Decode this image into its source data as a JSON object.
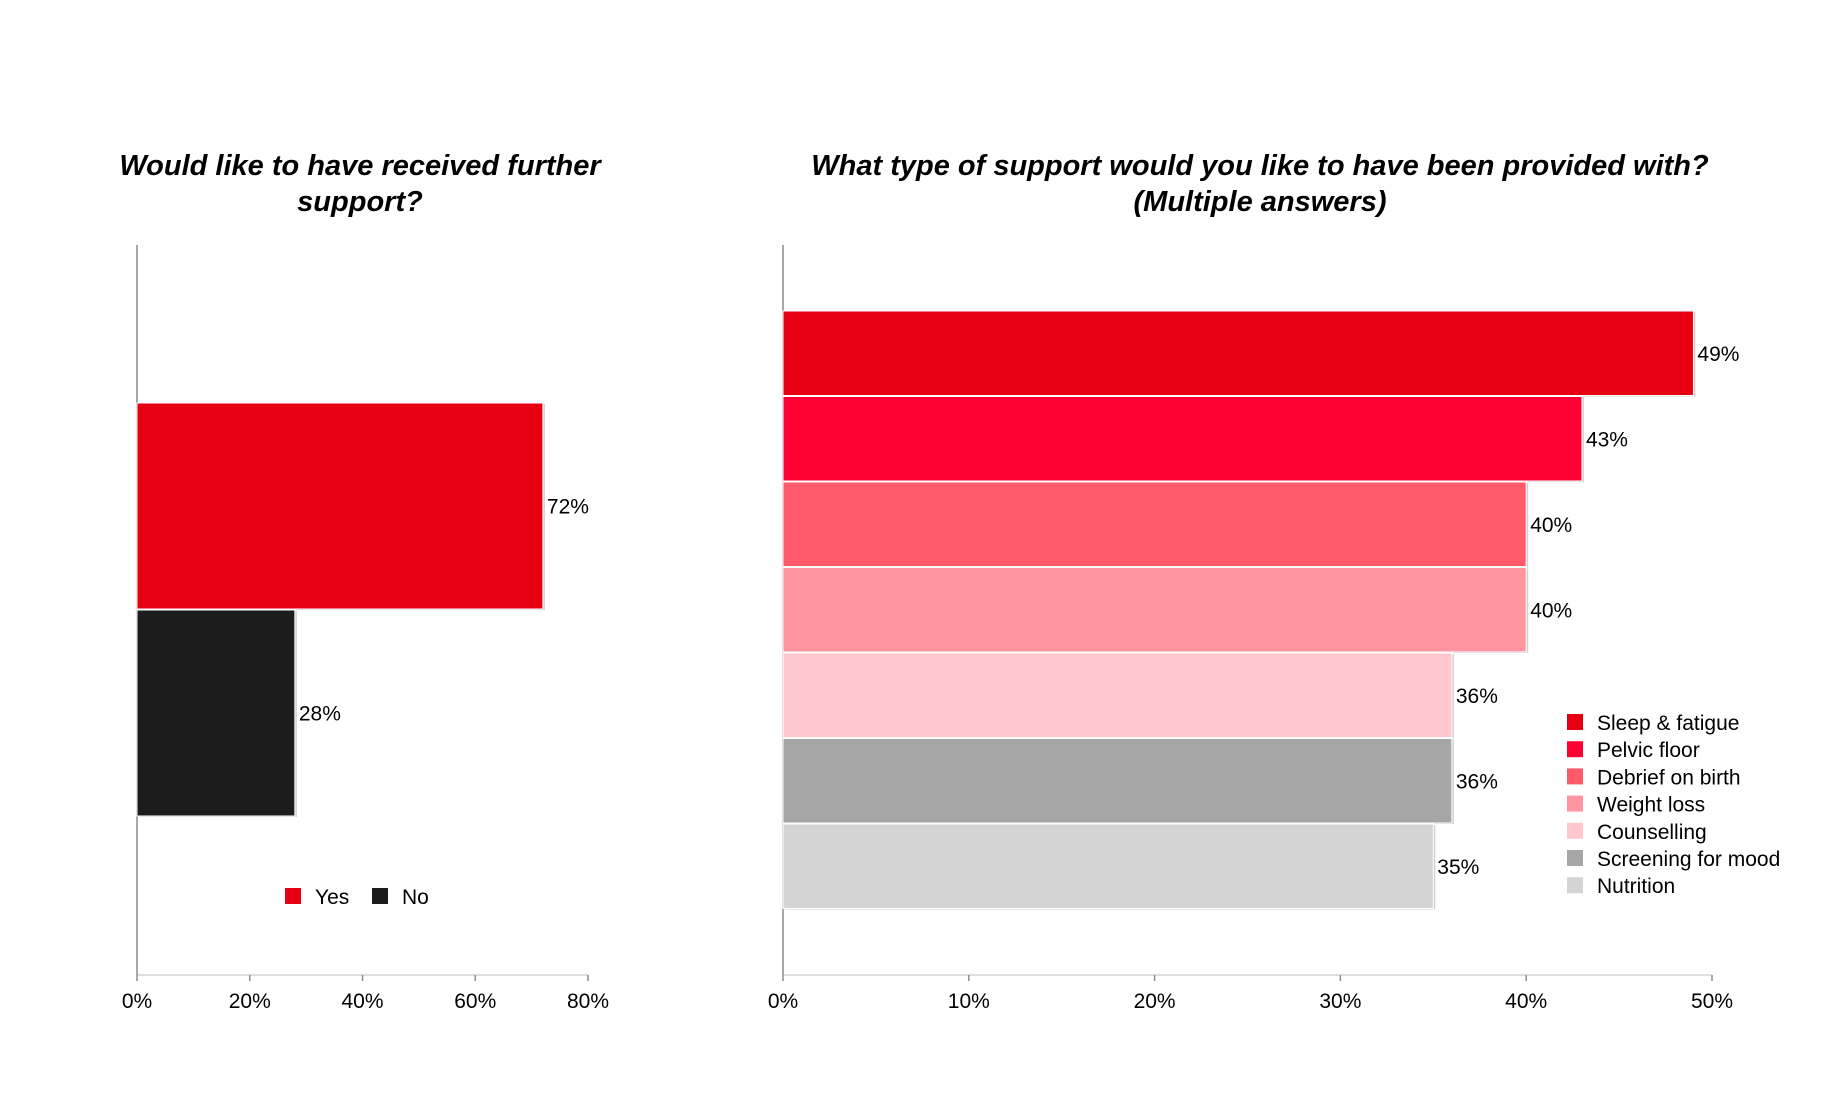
{
  "chart_data": [
    {
      "type": "bar",
      "orientation": "horizontal",
      "title": "Would like to have received further support?",
      "categories": [
        "Yes",
        "No"
      ],
      "values": [
        72,
        28
      ],
      "value_labels": [
        "72%",
        "28%"
      ],
      "colors": [
        "#e60012",
        "#1c1c1c"
      ],
      "xlim": [
        0,
        80
      ],
      "xticks": [
        0,
        20,
        40,
        60,
        80
      ],
      "xtick_labels": [
        "0%",
        "20%",
        "40%",
        "60%",
        "80%"
      ],
      "legend": {
        "position": "bottom",
        "items": [
          "Yes",
          "No"
        ]
      }
    },
    {
      "type": "bar",
      "orientation": "horizontal",
      "title": "What type of support would you like to have been provided with? (Multiple answers)",
      "title_lines": [
        "What type of support would you like to have been provided with?",
        "(Multiple answers)"
      ],
      "categories": [
        "Sleep & fatigue",
        "Pelvic floor",
        "Debrief on birth",
        "Weight loss",
        "Counselling",
        "Screening for mood",
        "Nutrition"
      ],
      "values": [
        49,
        43,
        40,
        40,
        36,
        36,
        35
      ],
      "value_labels": [
        "49%",
        "43%",
        "40%",
        "40%",
        "36%",
        "36%",
        "35%"
      ],
      "colors": [
        "#e60012",
        "#ff0033",
        "#ff5a6a",
        "#ff959f",
        "#ffc8cd",
        "#a6a6a6",
        "#d4d4d4"
      ],
      "xlim": [
        0,
        50
      ],
      "xticks": [
        0,
        10,
        20,
        30,
        40,
        50
      ],
      "xtick_labels": [
        "0%",
        "10%",
        "20%",
        "30%",
        "40%",
        "50%"
      ],
      "legend": {
        "position": "right",
        "items": [
          "Sleep & fatigue",
          "Pelvic floor",
          "Debrief on birth",
          "Weight loss",
          "Counselling",
          "Screening for mood",
          "Nutrition"
        ]
      }
    }
  ]
}
